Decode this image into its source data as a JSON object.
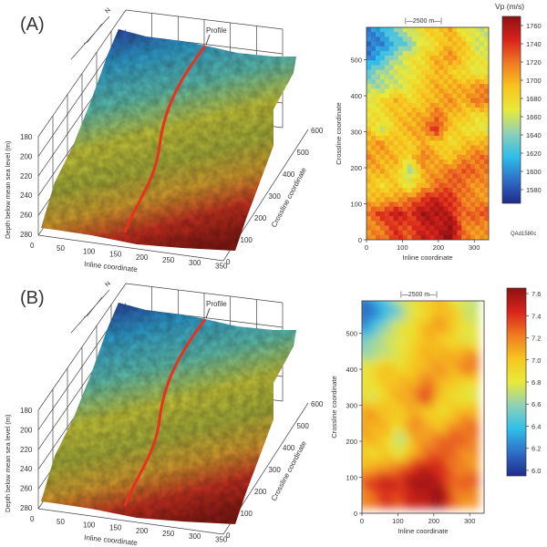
{
  "panels": [
    {
      "label": "(A)",
      "surface": {
        "profile_label": "Profile",
        "north_label": "N",
        "z_label": "Depth below mean sea level (m)",
        "z_ticks": [
          "180",
          "200",
          "220",
          "240",
          "260",
          "280"
        ],
        "x_label": "Inline coordinate",
        "x_ticks": [
          "0",
          "50",
          "100",
          "150",
          "200",
          "250",
          "300",
          "350"
        ],
        "y_label": "Crossline coordinate",
        "y_ticks": [
          "0",
          "100",
          "200",
          "300",
          "400",
          "500",
          "600"
        ]
      },
      "map": {
        "scale_bar": "|—2500 m—|",
        "x_label": "Inline coordinate",
        "y_label": "Crossline coordinate",
        "x_ticks": [
          "0",
          "100",
          "200",
          "300"
        ],
        "y_ticks": [
          "0",
          "100",
          "200",
          "300",
          "400",
          "500"
        ],
        "colorbar_title": "Vp (m/s)",
        "colorbar_ticks": [
          "1580",
          "1600",
          "1620",
          "1640",
          "1660",
          "1680",
          "1700",
          "1720",
          "1740",
          "1760"
        ],
        "credit": "QAd1580c"
      }
    },
    {
      "label": "(B)",
      "surface": {
        "profile_label": "Profile",
        "north_label": "N",
        "z_label": "Depth below mean sea level (m)",
        "z_ticks": [
          "180",
          "200",
          "220",
          "240",
          "260",
          "280"
        ],
        "x_label": "Inline coordinate",
        "x_ticks": [
          "0",
          "50",
          "100",
          "150",
          "200",
          "250",
          "300",
          "350"
        ],
        "y_label": "Crossline coordinate",
        "y_ticks": [
          "0",
          "100",
          "200",
          "300",
          "400",
          "500",
          "600"
        ]
      },
      "map": {
        "scale_bar": "|—2500 m—|",
        "x_label": "Inline coordinate",
        "y_label": "Crossline coordinate",
        "x_ticks": [
          "0",
          "100",
          "200",
          "300"
        ],
        "y_ticks": [
          "0",
          "100",
          "200",
          "300",
          "400",
          "500"
        ],
        "colorbar_title": "",
        "colorbar_ticks": [
          "6.0",
          "6.2",
          "6.4",
          "6.6",
          "6.8",
          "7.0",
          "7.2",
          "7.4",
          "7.6"
        ],
        "credit": ""
      }
    }
  ],
  "chart_data": [
    {
      "type": "heatmap",
      "title": "Vp (m/s)",
      "xlabel": "Inline coordinate",
      "ylabel": "Crossline coordinate",
      "xlim": [
        0,
        340
      ],
      "ylim": [
        0,
        590
      ],
      "clim": [
        1565,
        1770
      ],
      "rows_top_to_bottom": [
        [
          1600,
          1610,
          1640,
          1660,
          1680,
          1690,
          1700,
          1670,
          1660
        ],
        [
          1590,
          1600,
          1620,
          1640,
          1670,
          1680,
          1700,
          1690,
          1660
        ],
        [
          1600,
          1620,
          1650,
          1670,
          1680,
          1700,
          1710,
          1690,
          1670
        ],
        [
          1630,
          1650,
          1660,
          1670,
          1680,
          1700,
          1690,
          1680,
          1670
        ],
        [
          1650,
          1650,
          1660,
          1670,
          1690,
          1700,
          1700,
          1700,
          1710
        ],
        [
          1670,
          1680,
          1700,
          1680,
          1690,
          1700,
          1710,
          1700,
          1720
        ],
        [
          1670,
          1680,
          1690,
          1700,
          1700,
          1720,
          1700,
          1690,
          1680
        ],
        [
          1690,
          1660,
          1690,
          1700,
          1710,
          1740,
          1690,
          1680,
          1670
        ],
        [
          1700,
          1710,
          1690,
          1690,
          1700,
          1690,
          1680,
          1690,
          1700
        ],
        [
          1710,
          1700,
          1700,
          1680,
          1720,
          1700,
          1690,
          1710,
          1720
        ],
        [
          1700,
          1700,
          1690,
          1650,
          1700,
          1710,
          1720,
          1730,
          1720
        ],
        [
          1690,
          1680,
          1690,
          1670,
          1700,
          1720,
          1730,
          1720,
          1710
        ],
        [
          1700,
          1700,
          1710,
          1720,
          1740,
          1750,
          1740,
          1720,
          1710
        ],
        [
          1720,
          1740,
          1750,
          1740,
          1760,
          1760,
          1750,
          1720,
          1730
        ],
        [
          1710,
          1720,
          1740,
          1730,
          1750,
          1750,
          1770,
          1720,
          1710
        ]
      ]
    },
    {
      "type": "heatmap",
      "title": "",
      "xlabel": "Inline coordinate",
      "ylabel": "Crossline coordinate",
      "xlim": [
        0,
        340
      ],
      "ylim": [
        0,
        590
      ],
      "clim": [
        5.95,
        7.65
      ],
      "derived_from_panel_A": {
        "from": [
          1580,
          1760
        ],
        "to": [
          6.0,
          7.6
        ]
      },
      "smoothed": true
    }
  ],
  "colors": {
    "ramp": [
      "#1f2a8a",
      "#2f6fc8",
      "#2fbfea",
      "#8fd0b8",
      "#e8ea3a",
      "#f7c51e",
      "#f07a22",
      "#d8231c",
      "#8e1212"
    ],
    "profile": "#e8321e"
  }
}
